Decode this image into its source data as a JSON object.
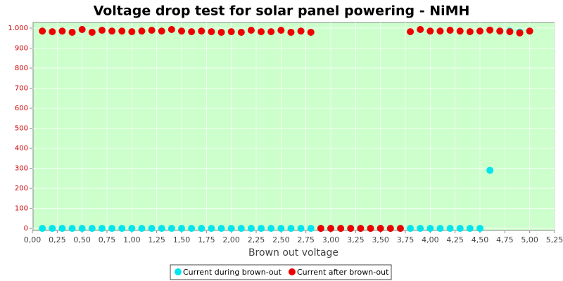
{
  "chart_data": {
    "type": "scatter",
    "title": "Voltage drop test for solar panel powering -  NiMH",
    "x_label": "Brown out voltage",
    "x": [
      0.1,
      0.2,
      0.3,
      0.4,
      0.5,
      0.6,
      0.7,
      0.8,
      0.9,
      1.0,
      1.1,
      1.2,
      1.3,
      1.4,
      1.5,
      1.6,
      1.7,
      1.8,
      1.9,
      2.0,
      2.1,
      2.2,
      2.3,
      2.4,
      2.5,
      2.6,
      2.7,
      2.8,
      2.9,
      3.0,
      3.1,
      3.2,
      3.3,
      3.4,
      3.5,
      3.6,
      3.7,
      3.8,
      3.9,
      4.0,
      4.1,
      4.2,
      4.3,
      4.4,
      4.5,
      4.6,
      4.7,
      4.8,
      4.9,
      5.0
    ],
    "series": [
      {
        "name": "Current during brown-out",
        "color": "#00e5ee",
        "values": [
          0,
          0,
          0,
          0,
          0,
          0,
          0,
          0,
          0,
          0,
          0,
          0,
          0,
          0,
          0,
          0,
          0,
          0,
          0,
          0,
          0,
          0,
          0,
          0,
          0,
          0,
          0,
          0,
          0,
          0,
          0,
          0,
          0,
          0,
          0,
          0,
          0,
          0,
          0,
          0,
          0,
          0,
          0,
          0,
          0,
          290,
          985,
          985,
          980,
          985
        ]
      },
      {
        "name": "Current after brown-out",
        "color": "#ee0000",
        "values": [
          985,
          982,
          985,
          979,
          993,
          979,
          989,
          985,
          985,
          982,
          985,
          989,
          985,
          993,
          985,
          982,
          985,
          982,
          979,
          982,
          979,
          989,
          982,
          982,
          989,
          979,
          985,
          979,
          0,
          0,
          0,
          0,
          0,
          0,
          0,
          0,
          0,
          982,
          993,
          985,
          985,
          989,
          985,
          982,
          985,
          990,
          985,
          982,
          976,
          985
        ]
      }
    ],
    "xlim": [
      0,
      5.25
    ],
    "ylim": [
      -10,
      1028
    ],
    "xticks": [
      {
        "value": 0,
        "label": "0,00"
      },
      {
        "value": 0.25,
        "label": "0,25"
      },
      {
        "value": 0.5,
        "label": "0,50"
      },
      {
        "value": 0.75,
        "label": "0,75"
      },
      {
        "value": 1,
        "label": "1,00"
      },
      {
        "value": 1.25,
        "label": "1,25"
      },
      {
        "value": 1.5,
        "label": "1,50"
      },
      {
        "value": 1.75,
        "label": "1,75"
      },
      {
        "value": 2,
        "label": "2,00"
      },
      {
        "value": 2.25,
        "label": "2,25"
      },
      {
        "value": 2.5,
        "label": "2,50"
      },
      {
        "value": 2.75,
        "label": "2,75"
      },
      {
        "value": 3,
        "label": "3,00"
      },
      {
        "value": 3.25,
        "label": "3,25"
      },
      {
        "value": 3.5,
        "label": "3,50"
      },
      {
        "value": 3.75,
        "label": "3,75"
      },
      {
        "value": 4,
        "label": "4,00"
      },
      {
        "value": 4.25,
        "label": "4,25"
      },
      {
        "value": 4.5,
        "label": "4,50"
      },
      {
        "value": 4.75,
        "label": "4,75"
      },
      {
        "value": 5,
        "label": "5,00"
      },
      {
        "value": 5.25,
        "label": "5,25"
      }
    ],
    "yticks": [
      0,
      100,
      200,
      300,
      400,
      500,
      600,
      700,
      800,
      900,
      {
        "value": 1000,
        "label": "1.000"
      }
    ],
    "grid": true
  }
}
